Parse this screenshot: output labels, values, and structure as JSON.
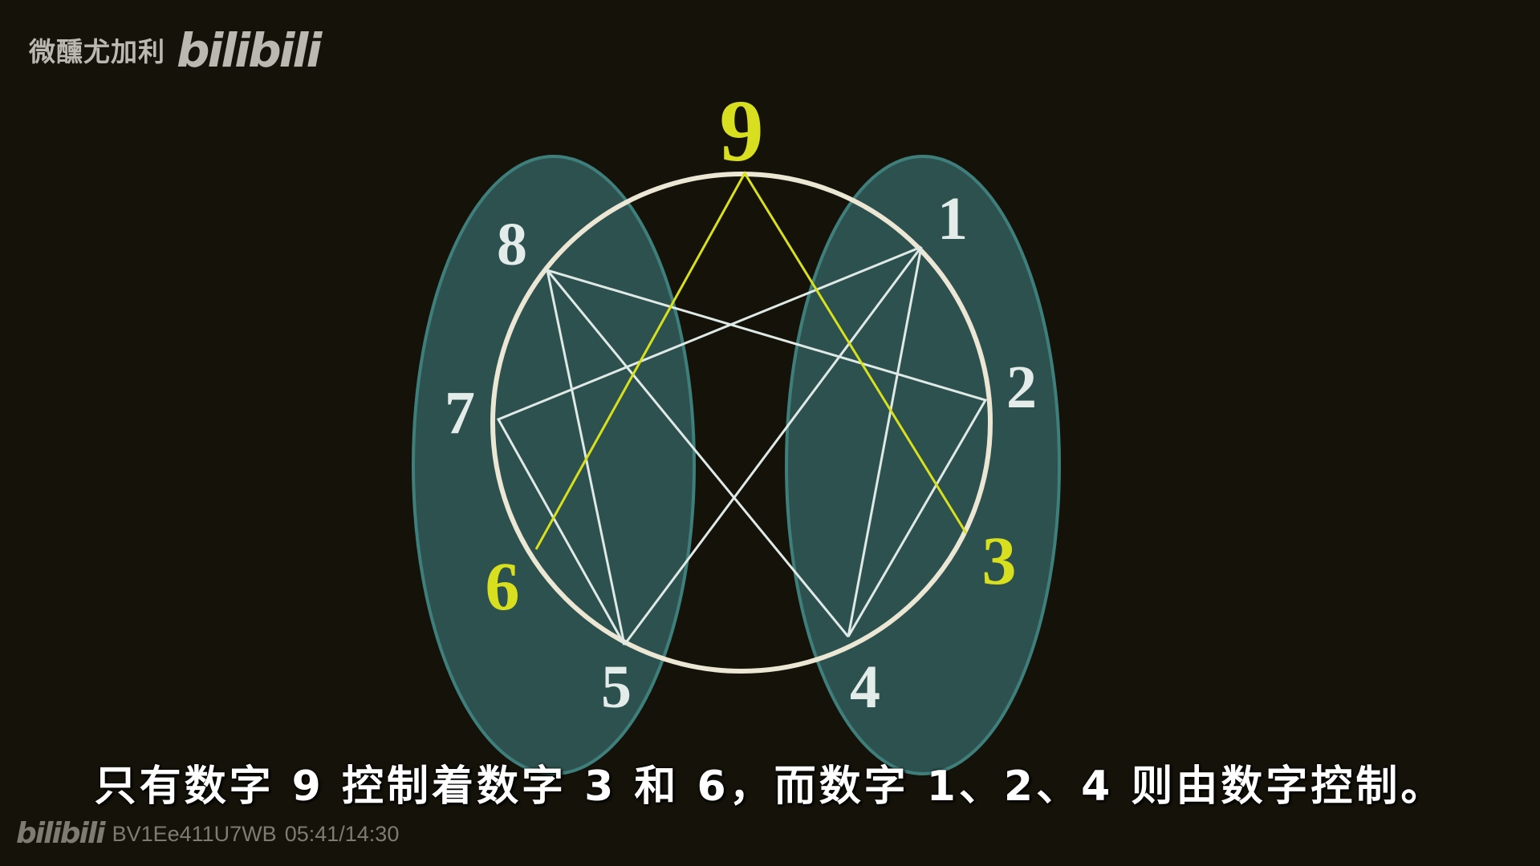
{
  "watermark": {
    "uploader": "微醺尤加利",
    "brand": "bilibili",
    "video_id": "BV1Ee411U7WB",
    "time": "05:41/14:30"
  },
  "diagram": {
    "labels": {
      "n9": "9",
      "n1": "1",
      "n2": "2",
      "n3": "3",
      "n4": "4",
      "n5": "5",
      "n6": "6",
      "n7": "7",
      "n8": "8"
    },
    "colors": {
      "background": "#15120a",
      "ellipse_fill": "#2f5655",
      "ellipse_stroke": "#3e7f7c",
      "circle_stroke": "#ece6d4",
      "line_white": "#dfe9e6",
      "highlight_yellow": "#d8e01c",
      "label_white": "#e4ecea",
      "label_yellow": "#d8df1e"
    }
  },
  "subtitle": "只有数字 9 控制着数字 3 和 6，而数字 1、2、4 则由数字控制。"
}
